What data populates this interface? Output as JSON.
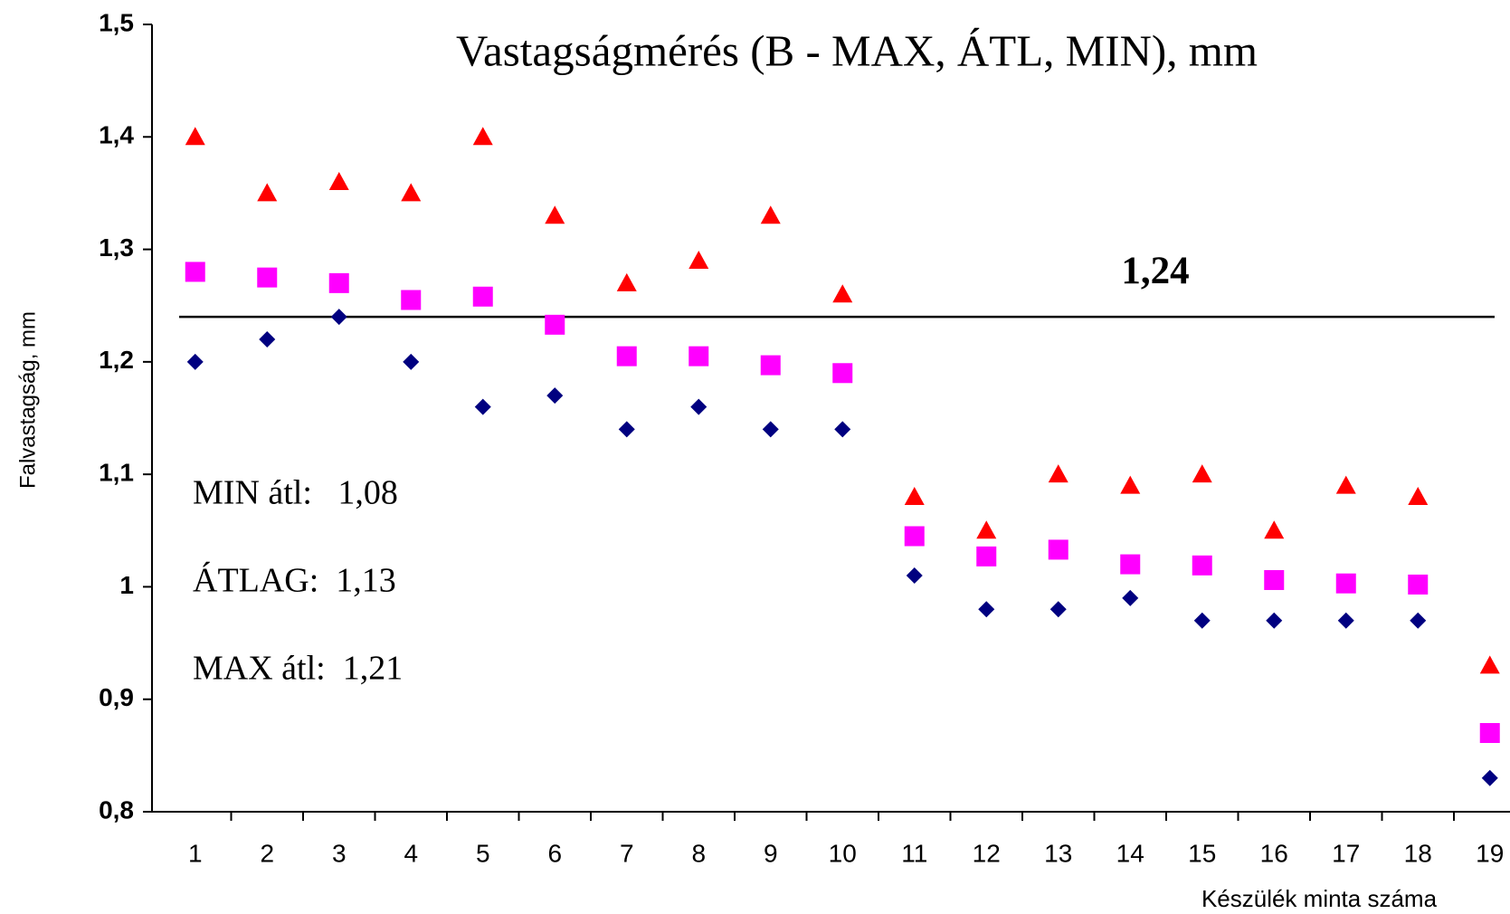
{
  "chart_data": {
    "type": "scatter",
    "title": "Vastagságmérés (B - MAX, ÁTL, MIN), mm",
    "y_label": "Falvastagság, mm",
    "x_label": "Készülék minta száma",
    "categories": [
      "1",
      "2",
      "3",
      "4",
      "5",
      "6",
      "7",
      "8",
      "9",
      "10",
      "11",
      "12",
      "13",
      "14",
      "15",
      "16",
      "17",
      "18",
      "19"
    ],
    "series": [
      {
        "marker": "triangle",
        "color": "#ff0000",
        "values": [
          1.4,
          1.35,
          1.36,
          1.35,
          1.4,
          1.33,
          1.27,
          1.29,
          1.33,
          1.26,
          1.08,
          1.05,
          1.1,
          1.09,
          1.1,
          1.05,
          1.09,
          1.08,
          0.93
        ]
      },
      {
        "marker": "square",
        "color": "#ff00ff",
        "values": [
          1.28,
          1.275,
          1.27,
          1.255,
          1.258,
          1.233,
          1.205,
          1.205,
          1.197,
          1.19,
          1.045,
          1.027,
          1.033,
          1.02,
          1.019,
          1.006,
          1.003,
          1.002,
          0.87
        ]
      },
      {
        "marker": "diamond",
        "color": "#000080",
        "values": [
          1.2,
          1.22,
          1.24,
          1.2,
          1.16,
          1.17,
          1.14,
          1.16,
          1.14,
          1.14,
          1.01,
          0.98,
          0.98,
          0.99,
          0.97,
          0.97,
          0.97,
          0.97,
          0.83
        ]
      }
    ],
    "reference_line": {
      "value": 1.24,
      "label": "1,24"
    },
    "annotations": [
      "MIN átl:   1,08",
      "ÁTLAG:  1,13",
      "MAX átl:  1,21"
    ],
    "ylim": [
      0.8,
      1.5
    ],
    "yticks": [
      {
        "value": 0.8,
        "label": "0,8"
      },
      {
        "value": 0.9,
        "label": "0,9"
      },
      1,
      {
        "value": 1.1,
        "label": "1,1"
      },
      {
        "value": 1.2,
        "label": "1,2"
      },
      {
        "value": 1.3,
        "label": "1,3"
      },
      {
        "value": 1.4,
        "label": "1,4"
      },
      {
        "value": 1.5,
        "label": "1,5"
      }
    ],
    "grid": false
  }
}
